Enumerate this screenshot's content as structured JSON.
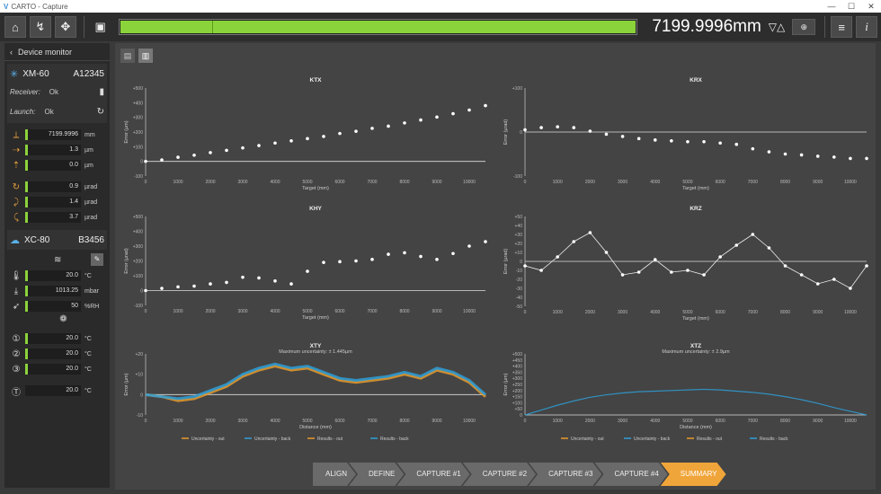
{
  "window": {
    "title": "CARTO - Capture",
    "buttons": [
      "—",
      "☐",
      "✕"
    ]
  },
  "toolbar": {
    "readout": "7199.9996mm",
    "progress": 1.0,
    "icons": [
      "home-icon",
      "align-icon",
      "target-icon",
      "capture-icon"
    ]
  },
  "sidebar": {
    "header": "Device monitor",
    "xm": {
      "name": "XM-60",
      "serial": "A12345",
      "receiver_label": "Receiver:",
      "receiver_value": "Ok",
      "launch_label": "Launch:",
      "launch_value": "Ok"
    },
    "xm_values": [
      {
        "v": "7199.9996",
        "u": "mm"
      },
      {
        "v": "1.3",
        "u": "µm"
      },
      {
        "v": "0.0",
        "u": "µm"
      },
      {
        "v": "0.9",
        "u": "µrad"
      },
      {
        "v": "1.4",
        "u": "µrad"
      },
      {
        "v": "3.7",
        "u": "µrad"
      }
    ],
    "xc": {
      "name": "XC-80",
      "serial": "B3456"
    },
    "xc_values": [
      {
        "v": "20.0",
        "u": "°C"
      },
      {
        "v": "1013.25",
        "u": "mbar"
      },
      {
        "v": "50",
        "u": "%RH"
      }
    ],
    "material_values": [
      {
        "v": "20.0",
        "u": "°C"
      },
      {
        "v": "20.0",
        "u": "°C"
      },
      {
        "v": "20.0",
        "u": "°C"
      },
      {
        "v": "20.0",
        "u": "°C"
      }
    ]
  },
  "steps": [
    "ALIGN",
    "DEFINE",
    "CAPTURE #1",
    "CAPTURE #2",
    "CAPTURE #3",
    "CAPTURE #4",
    "SUMMARY"
  ],
  "legend": [
    "Uncertainty - out",
    "Uncertainty - back",
    "Results - out",
    "Results - back"
  ],
  "colors": {
    "accent": "#8bd33a",
    "active_step": "#f0a53a",
    "series_blue": "#2e9fd8",
    "series_orange": "#e89a2a"
  },
  "chart_data": [
    {
      "type": "scatter",
      "title": "KTX",
      "xlabel": "Target (mm)",
      "ylabel": "Error (µm)",
      "xlim": [
        0,
        10500
      ],
      "ylim": [
        -100,
        500
      ],
      "yticks": [
        -100,
        0,
        100,
        200,
        300,
        400,
        500
      ],
      "x": [
        0,
        500,
        1000,
        1500,
        2000,
        2500,
        3000,
        3500,
        4000,
        4500,
        5000,
        5500,
        6000,
        6500,
        7000,
        7500,
        8000,
        8500,
        9000,
        9500,
        10000,
        10500
      ],
      "y": [
        0,
        10,
        28,
        42,
        60,
        75,
        92,
        108,
        125,
        140,
        155,
        170,
        190,
        205,
        225,
        240,
        262,
        282,
        302,
        325,
        350,
        380
      ]
    },
    {
      "type": "scatter",
      "title": "KRX",
      "xlabel": "Target (mm)",
      "ylabel": "Error (µrad)",
      "xlim": [
        0,
        10500
      ],
      "ylim": [
        -100,
        100
      ],
      "yticks": [
        -100,
        0,
        100
      ],
      "x": [
        0,
        500,
        1000,
        1500,
        2000,
        2500,
        3000,
        3500,
        4000,
        4500,
        5000,
        5500,
        6000,
        6500,
        7000,
        7500,
        8000,
        8500,
        9000,
        9500,
        10000,
        10500
      ],
      "y": [
        5,
        10,
        12,
        10,
        2,
        -5,
        -10,
        -15,
        -18,
        -20,
        -22,
        -22,
        -25,
        -28,
        -38,
        -45,
        -50,
        -52,
        -55,
        -57,
        -60,
        -60
      ]
    },
    {
      "type": "scatter",
      "title": "KHY",
      "xlabel": "Target (mm)",
      "ylabel": "Error (µrad)",
      "xlim": [
        0,
        10500
      ],
      "ylim": [
        -100,
        500
      ],
      "yticks": [
        -100,
        0,
        100,
        200,
        300,
        400,
        500
      ],
      "x": [
        0,
        500,
        1000,
        1500,
        2000,
        2500,
        3000,
        3500,
        4000,
        4500,
        5000,
        5500,
        6000,
        6500,
        7000,
        7500,
        8000,
        8500,
        9000,
        9500,
        10000,
        10500
      ],
      "y": [
        0,
        15,
        25,
        30,
        45,
        55,
        90,
        85,
        65,
        45,
        130,
        190,
        195,
        200,
        210,
        245,
        255,
        230,
        210,
        250,
        300,
        330
      ]
    },
    {
      "type": "line",
      "title": "KRZ",
      "xlabel": "Target (mm)",
      "ylabel": "Error (µrad)",
      "xlim": [
        0,
        10500
      ],
      "ylim": [
        -50,
        50
      ],
      "yticks": [
        -50,
        -40,
        -30,
        -20,
        -10,
        0,
        10,
        20,
        30,
        40,
        50
      ],
      "x": [
        0,
        500,
        1000,
        1500,
        2000,
        2500,
        3000,
        3500,
        4000,
        4500,
        5000,
        5500,
        6000,
        6500,
        7000,
        7500,
        8000,
        8500,
        9000,
        9500,
        10000,
        10500
      ],
      "y": [
        -5,
        -10,
        5,
        22,
        32,
        10,
        -15,
        -12,
        2,
        -12,
        -10,
        -15,
        5,
        18,
        30,
        15,
        -5,
        -15,
        -25,
        -20,
        -30,
        -5
      ]
    },
    {
      "type": "line",
      "title": "XTY",
      "subtitle": "Maximum uncertainty: ± 1.445µm",
      "xlabel": "Distance (mm)",
      "ylabel": "Error (µm)",
      "xlim": [
        0,
        10500
      ],
      "ylim": [
        -10,
        20
      ],
      "yticks": [
        -10,
        0,
        10,
        20
      ],
      "series": [
        {
          "name": "Results - out",
          "x": [
            0,
            500,
            1000,
            1500,
            2000,
            2500,
            3000,
            3500,
            4000,
            4500,
            5000,
            5500,
            6000,
            6500,
            7000,
            7500,
            8000,
            8500,
            9000,
            9500,
            10000,
            10500
          ],
          "y": [
            0,
            -1,
            -3,
            -2,
            1,
            4,
            9,
            12,
            14,
            12,
            13,
            10,
            7,
            6,
            7,
            8,
            10,
            8,
            12,
            10,
            6,
            -1
          ]
        },
        {
          "name": "Results - back",
          "x": [
            0,
            500,
            1000,
            1500,
            2000,
            2500,
            3000,
            3500,
            4000,
            4500,
            5000,
            5500,
            6000,
            6500,
            7000,
            7500,
            8000,
            8500,
            9000,
            9500,
            10000,
            10500
          ],
          "y": [
            0,
            -1,
            -2,
            -1,
            2,
            5,
            10,
            13,
            15,
            13,
            14,
            11,
            8,
            7,
            8,
            9,
            11,
            9,
            13,
            11,
            7,
            0
          ]
        }
      ]
    },
    {
      "type": "line",
      "title": "XTZ",
      "subtitle": "Maximum uncertainty: ± 2.9µm",
      "xlabel": "Distance (mm)",
      "ylabel": "Error (µm)",
      "xlim": [
        0,
        10500
      ],
      "ylim": [
        0,
        500
      ],
      "yticks": [
        0,
        50,
        100,
        150,
        200,
        250,
        300,
        350,
        400,
        450,
        500
      ],
      "series": [
        {
          "name": "Results - back",
          "x": [
            0,
            500,
            1000,
            1500,
            2000,
            2500,
            3000,
            3500,
            4000,
            4500,
            5000,
            5500,
            6000,
            6500,
            7000,
            7500,
            8000,
            8500,
            9000,
            9500,
            10000,
            10500
          ],
          "y": [
            0,
            40,
            80,
            115,
            145,
            165,
            180,
            190,
            195,
            200,
            205,
            210,
            205,
            195,
            185,
            170,
            150,
            125,
            95,
            60,
            30,
            0
          ]
        }
      ]
    }
  ]
}
